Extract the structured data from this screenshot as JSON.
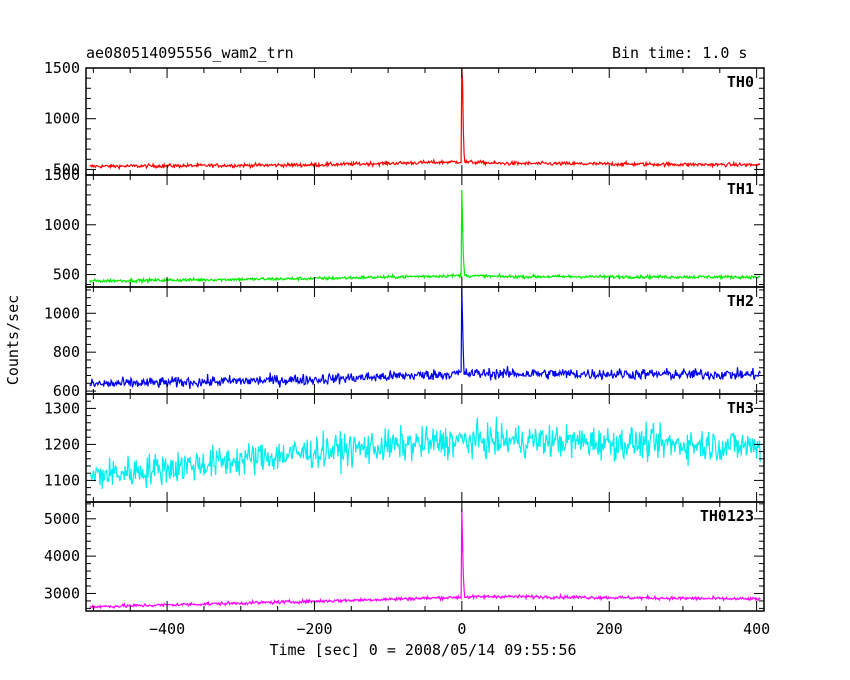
{
  "header": {
    "title": "ae080514095556_wam2_trn",
    "bin_time": "Bin time: 1.0 s"
  },
  "chart_data": {
    "type": "line",
    "title": "ae080514095556_wam2_trn",
    "subtitle": "Bin time: 1.0 s",
    "xlabel": "Time [sec] 0 = 2008/05/14 09:55:56",
    "ylabel": "Counts/sec",
    "xlim": [
      -510,
      410
    ],
    "xticks": [
      -400,
      -200,
      0,
      200,
      400
    ],
    "xtick_labels": [
      "−400",
      "−200",
      "0",
      "200",
      "400"
    ],
    "series": [
      {
        "name": "TH0",
        "color": "#ff0000",
        "ylim": [
          445,
          1500
        ],
        "yticks": [
          500,
          1000,
          1500
        ],
        "ytick_labels": [
          "500",
          "1000",
          "1500"
        ],
        "baseline_trend": [
          [
            -510,
            530
          ],
          [
            -200,
            545
          ],
          [
            0,
            575
          ],
          [
            50,
            560
          ],
          [
            400,
            545
          ]
        ],
        "noise": 18,
        "spikes": [
          [
            0,
            1500
          ],
          [
            1,
            1350
          ],
          [
            2,
            900
          ],
          [
            3,
            650
          ]
        ]
      },
      {
        "name": "TH1",
        "color": "#00ee00",
        "ylim": [
          375,
          1500
        ],
        "yticks": [
          500,
          1000,
          1500
        ],
        "ytick_labels": [
          "500",
          "1000",
          "1500"
        ],
        "baseline_trend": [
          [
            -510,
            435
          ],
          [
            -200,
            460
          ],
          [
            0,
            490
          ],
          [
            50,
            480
          ],
          [
            400,
            475
          ]
        ],
        "noise": 16,
        "spikes": [
          [
            0,
            1350
          ],
          [
            1,
            1000
          ],
          [
            2,
            700
          ],
          [
            3,
            560
          ]
        ]
      },
      {
        "name": "TH2",
        "color": "#0000ee",
        "ylim": [
          585,
          1135
        ],
        "yticks": [
          600,
          800,
          1000
        ],
        "ytick_labels": [
          "600",
          "800",
          "1000"
        ],
        "baseline_trend": [
          [
            -510,
            635
          ],
          [
            -200,
            660
          ],
          [
            0,
            690
          ],
          [
            50,
            690
          ],
          [
            400,
            685
          ]
        ],
        "noise": 28,
        "spikes": [
          [
            0,
            1130
          ],
          [
            1,
            950
          ],
          [
            2,
            800
          ]
        ]
      },
      {
        "name": "TH3",
        "color": "#00eeee",
        "ylim": [
          1040,
          1340
        ],
        "yticks": [
          1100,
          1200,
          1300
        ],
        "ytick_labels": [
          "1100",
          "1200",
          "1300"
        ],
        "baseline_trend": [
          [
            -510,
            1110
          ],
          [
            -200,
            1180
          ],
          [
            0,
            1210
          ],
          [
            100,
            1210
          ],
          [
            400,
            1195
          ]
        ],
        "noise": 45,
        "spikes": []
      },
      {
        "name": "TH0123",
        "color": "#ff00ff",
        "ylim": [
          2530,
          5450
        ],
        "yticks": [
          3000,
          4000,
          5000
        ],
        "ytick_labels": [
          "3000",
          "4000",
          "5000"
        ],
        "baseline_trend": [
          [
            -510,
            2640
          ],
          [
            -200,
            2790
          ],
          [
            0,
            2900
          ],
          [
            50,
            2920
          ],
          [
            400,
            2850
          ]
        ],
        "noise": 45,
        "spikes": [
          [
            0,
            5250
          ],
          [
            1,
            4300
          ],
          [
            2,
            3500
          ],
          [
            3,
            3100
          ]
        ]
      }
    ]
  },
  "colors": {
    "frame": "#000000",
    "background": "#ffffff"
  }
}
